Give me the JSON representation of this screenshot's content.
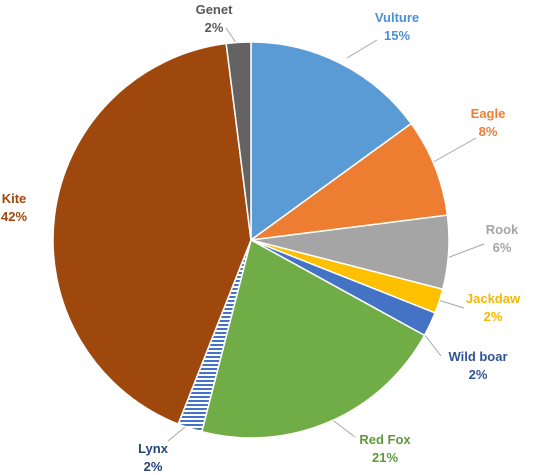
{
  "chart_data": {
    "type": "pie",
    "title": "",
    "start": "top, clockwise",
    "slices": [
      {
        "label": "Vulture",
        "value": 15,
        "pct_label": "15%",
        "color": "#5B9BD5",
        "label_color": "#4A90D6"
      },
      {
        "label": "Eagle",
        "value": 8,
        "pct_label": "8%",
        "color": "#ED7D31",
        "label_color": "#ED7D31"
      },
      {
        "label": "Rook",
        "value": 6,
        "pct_label": "6%",
        "color": "#A5A5A5",
        "label_color": "#A5A5A5"
      },
      {
        "label": "Jackdaw",
        "value": 2,
        "pct_label": "2%",
        "color": "#FFC000",
        "label_color": "#F5B800"
      },
      {
        "label": "Wild boar",
        "value": 2,
        "pct_label": "2%",
        "color": "#4472C4",
        "label_color": "#2F5597"
      },
      {
        "label": "Red Fox",
        "value": 21,
        "pct_label": "21%",
        "color": "#70AD47",
        "label_color": "#5E9A3A"
      },
      {
        "label": "Lynx",
        "value": 2,
        "pct_label": "2%",
        "color": "#4472C4",
        "label_color": "#264478",
        "pattern": "horizontal-stripes"
      },
      {
        "label": "Kite",
        "value": 42,
        "pct_label": "42%",
        "color": "#9E480E",
        "label_color": "#9E480E"
      },
      {
        "label": "Genet",
        "value": 2,
        "pct_label": "2%",
        "color": "#636363",
        "label_color": "#595959"
      }
    ]
  }
}
